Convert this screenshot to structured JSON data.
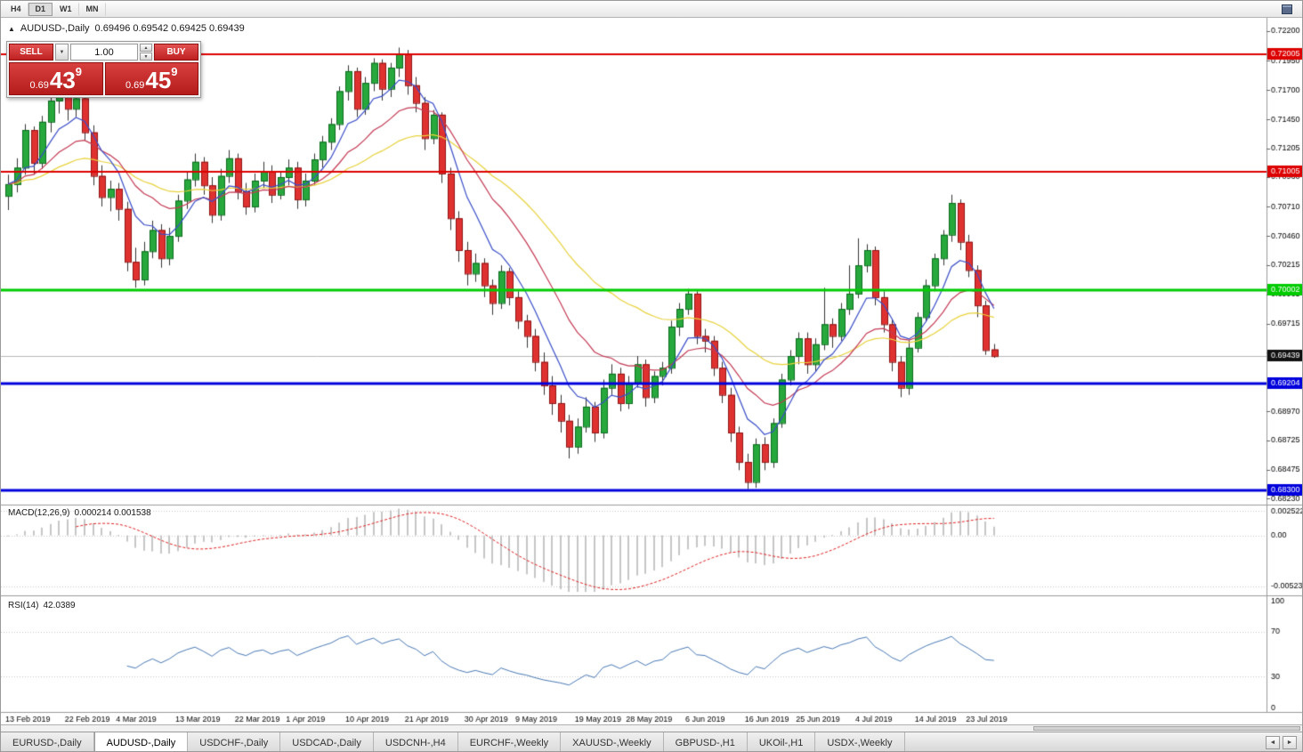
{
  "toolbar": {
    "timeframes": [
      "H4",
      "D1",
      "W1",
      "MN"
    ]
  },
  "icons": {
    "collapse": "▲",
    "dropdown": "▼",
    "spin_up": "▲",
    "spin_down": "▼",
    "tab_left": "◄",
    "tab_right": "►"
  },
  "chart_header": {
    "symbol": "AUDUSD-,Daily",
    "ohlc": "0.69496 0.69542 0.69425 0.69439"
  },
  "trade_panel": {
    "sell_label": "SELL",
    "buy_label": "BUY",
    "volume_value": "1.00",
    "bid": {
      "prefix": "0.69",
      "big": "43",
      "sup": "9"
    },
    "ask": {
      "prefix": "0.69",
      "big": "45",
      "sup": "9"
    }
  },
  "macd_panel": {
    "name": "MACD(12,26,9)",
    "values": "0.000214 0.001538"
  },
  "rsi_panel": {
    "name": "RSI(14)",
    "values": "42.0389"
  },
  "tabs": [
    {
      "label": "EURUSD-,Daily",
      "active": false
    },
    {
      "label": "AUDUSD-,Daily",
      "active": true
    },
    {
      "label": "USDCHF-,Daily",
      "active": false
    },
    {
      "label": "USDCAD-,Daily",
      "active": false
    },
    {
      "label": "USDCNH-,H4",
      "active": false
    },
    {
      "label": "EURCHF-,Weekly",
      "active": false
    },
    {
      "label": "XAUUSD-,Weekly",
      "active": false
    },
    {
      "label": "GBPUSD-,H1",
      "active": false
    },
    {
      "label": "UKOil-,H1",
      "active": false
    },
    {
      "label": "USDX-,Weekly",
      "active": false
    }
  ],
  "chart_data": {
    "type": "candlestick",
    "symbol": "AUDUSD",
    "timeframe": "Daily",
    "colors": {
      "up_fill": "#27a83c",
      "up_border": "#0c6b1e",
      "down_fill": "#e03131",
      "down_border": "#8f1414",
      "wick": "#333333",
      "bid_line": "#b8b8b8"
    },
    "y_ticks": [
      "0.72200",
      "0.71950",
      "0.71700",
      "0.71450",
      "0.71205",
      "0.70960",
      "0.70710",
      "0.70460",
      "0.70215",
      "0.69965",
      "0.69715",
      "0.69470",
      "0.68970",
      "0.68725",
      "0.68475",
      "0.68230"
    ],
    "levels": [
      {
        "label": "0.72005",
        "price": 0.72005,
        "color": "#dd0000",
        "width": 2
      },
      {
        "label": "0.71005",
        "price": 0.71005,
        "color": "#dd0000",
        "width": 2
      },
      {
        "label": "0.70002",
        "price": 0.70002,
        "color": "#00cc00",
        "width": 3
      },
      {
        "label": "0.69204",
        "price": 0.69204,
        "color": "#0000dd",
        "width": 3
      },
      {
        "label": "0.68300",
        "price": 0.683,
        "color": "#0000dd",
        "width": 3
      }
    ],
    "current_price": {
      "label": "0.69439",
      "price": 0.69439,
      "tag_color": "#111111"
    },
    "moving_averages": [
      {
        "type": "ema",
        "period": 34,
        "color": "#e8d23a"
      },
      {
        "type": "ema",
        "period": 16,
        "color": "#c43a54"
      },
      {
        "type": "ema",
        "period": 7,
        "color": "#3a4ec8"
      }
    ],
    "x_labels": [
      {
        "label": "13 Feb 2019",
        "bar": 0
      },
      {
        "label": "22 Feb 2019",
        "bar": 7
      },
      {
        "label": "4 Mar 2019",
        "bar": 13
      },
      {
        "label": "13 Mar 2019",
        "bar": 20
      },
      {
        "label": "22 Mar 2019",
        "bar": 27
      },
      {
        "label": "1 Apr 2019",
        "bar": 33
      },
      {
        "label": "10 Apr 2019",
        "bar": 40
      },
      {
        "label": "21 Apr 2019",
        "bar": 47
      },
      {
        "label": "30 Apr 2019",
        "bar": 54
      },
      {
        "label": "9 May 2019",
        "bar": 60
      },
      {
        "label": "19 May 2019",
        "bar": 67
      },
      {
        "label": "28 May 2019",
        "bar": 73
      },
      {
        "label": "6 Jun 2019",
        "bar": 80
      },
      {
        "label": "16 Jun 2019",
        "bar": 87
      },
      {
        "label": "25 Jun 2019",
        "bar": 93
      },
      {
        "label": "4 Jul 2019",
        "bar": 100
      },
      {
        "label": "14 Jul 2019",
        "bar": 107
      },
      {
        "label": "23 Jul 2019",
        "bar": 113
      }
    ],
    "macd": {
      "params": [
        12,
        26,
        9
      ],
      "axis": [
        {
          "label": "0.002522",
          "value": 0.002522
        },
        {
          "label": "0.00",
          "value": 0
        },
        {
          "label": "-0.005234",
          "value": -0.005234
        }
      ],
      "histogram_color": "#c6c6c6",
      "signal_color": "#e02020"
    },
    "rsi": {
      "period": 14,
      "last_value": 42.0389,
      "axis": [
        {
          "label": "100",
          "value": 100
        },
        {
          "label": "70",
          "value": 70
        },
        {
          "label": "30",
          "value": 30
        },
        {
          "label": "0",
          "value": 0
        }
      ],
      "line_color": "#4a7ab5",
      "level_lines": [
        70,
        30
      ]
    },
    "candles": [
      [
        0.708,
        0.7098,
        0.7068,
        0.709
      ],
      [
        0.709,
        0.7112,
        0.7083,
        0.7104
      ],
      [
        0.7104,
        0.7141,
        0.7098,
        0.7136
      ],
      [
        0.7136,
        0.7139,
        0.7098,
        0.7108
      ],
      [
        0.7108,
        0.7148,
        0.7103,
        0.7143
      ],
      [
        0.7143,
        0.7166,
        0.7134,
        0.7161
      ],
      [
        0.7161,
        0.7176,
        0.715,
        0.7169
      ],
      [
        0.7169,
        0.7173,
        0.7144,
        0.7154
      ],
      [
        0.7154,
        0.7171,
        0.7147,
        0.7163
      ],
      [
        0.7163,
        0.7166,
        0.7127,
        0.7134
      ],
      [
        0.7134,
        0.714,
        0.7089,
        0.7097
      ],
      [
        0.7097,
        0.7106,
        0.7071,
        0.7079
      ],
      [
        0.7079,
        0.7093,
        0.7067,
        0.7086
      ],
      [
        0.7086,
        0.7091,
        0.7059,
        0.7069
      ],
      [
        0.7069,
        0.7075,
        0.7016,
        0.7024
      ],
      [
        0.7024,
        0.7036,
        0.7002,
        0.7009
      ],
      [
        0.7009,
        0.7041,
        0.7004,
        0.7033
      ],
      [
        0.7033,
        0.7059,
        0.7027,
        0.7051
      ],
      [
        0.7051,
        0.7056,
        0.7019,
        0.7027
      ],
      [
        0.7027,
        0.7053,
        0.7021,
        0.7046
      ],
      [
        0.7046,
        0.7081,
        0.7041,
        0.7076
      ],
      [
        0.7076,
        0.7101,
        0.7069,
        0.7094
      ],
      [
        0.7094,
        0.7116,
        0.7088,
        0.7109
      ],
      [
        0.7109,
        0.7113,
        0.7081,
        0.7089
      ],
      [
        0.7089,
        0.7096,
        0.7057,
        0.7064
      ],
      [
        0.7064,
        0.7103,
        0.7059,
        0.7097
      ],
      [
        0.7097,
        0.7119,
        0.7091,
        0.7112
      ],
      [
        0.7112,
        0.7116,
        0.7077,
        0.7084
      ],
      [
        0.7084,
        0.7091,
        0.7064,
        0.7071
      ],
      [
        0.7071,
        0.7099,
        0.7066,
        0.7093
      ],
      [
        0.7093,
        0.7109,
        0.7087,
        0.7101
      ],
      [
        0.7101,
        0.7106,
        0.7074,
        0.7081
      ],
      [
        0.7081,
        0.7101,
        0.7077,
        0.7096
      ],
      [
        0.7096,
        0.7111,
        0.7089,
        0.7104
      ],
      [
        0.7104,
        0.7109,
        0.7069,
        0.7077
      ],
      [
        0.7077,
        0.7099,
        0.7071,
        0.7093
      ],
      [
        0.7093,
        0.7116,
        0.7089,
        0.7111
      ],
      [
        0.7111,
        0.7131,
        0.7104,
        0.7126
      ],
      [
        0.7126,
        0.7146,
        0.7119,
        0.7141
      ],
      [
        0.7141,
        0.7173,
        0.7136,
        0.7169
      ],
      [
        0.7169,
        0.7191,
        0.7161,
        0.7186
      ],
      [
        0.7186,
        0.7189,
        0.7147,
        0.7154
      ],
      [
        0.7154,
        0.7181,
        0.7149,
        0.7176
      ],
      [
        0.7176,
        0.7197,
        0.7169,
        0.7193
      ],
      [
        0.7193,
        0.7196,
        0.7161,
        0.7171
      ],
      [
        0.7171,
        0.7193,
        0.7164,
        0.7189
      ],
      [
        0.7189,
        0.7206,
        0.7181,
        0.7201
      ],
      [
        0.7201,
        0.7204,
        0.7166,
        0.7174
      ],
      [
        0.7174,
        0.7181,
        0.7151,
        0.7159
      ],
      [
        0.7159,
        0.7164,
        0.7119,
        0.7129
      ],
      [
        0.7129,
        0.7153,
        0.7124,
        0.7149
      ],
      [
        0.7149,
        0.7151,
        0.7091,
        0.7099
      ],
      [
        0.7099,
        0.7104,
        0.7051,
        0.7061
      ],
      [
        0.7061,
        0.7067,
        0.7024,
        0.7034
      ],
      [
        0.7034,
        0.7041,
        0.7004,
        0.7014
      ],
      [
        0.7014,
        0.7031,
        0.7007,
        0.7023
      ],
      [
        0.7023,
        0.7027,
        0.6994,
        0.7004
      ],
      [
        0.7004,
        0.7009,
        0.6979,
        0.6989
      ],
      [
        0.6989,
        0.7021,
        0.6984,
        0.7016
      ],
      [
        0.7016,
        0.7019,
        0.6987,
        0.6994
      ],
      [
        0.6994,
        0.6999,
        0.6967,
        0.6974
      ],
      [
        0.6974,
        0.6979,
        0.6951,
        0.6961
      ],
      [
        0.6961,
        0.6967,
        0.6931,
        0.6939
      ],
      [
        0.6939,
        0.6947,
        0.6911,
        0.6919
      ],
      [
        0.6919,
        0.6927,
        0.6894,
        0.6904
      ],
      [
        0.6904,
        0.6911,
        0.6879,
        0.6889
      ],
      [
        0.6889,
        0.6894,
        0.6857,
        0.6867
      ],
      [
        0.6867,
        0.6891,
        0.6861,
        0.6884
      ],
      [
        0.6884,
        0.6909,
        0.6879,
        0.6901
      ],
      [
        0.6901,
        0.6905,
        0.6871,
        0.6879
      ],
      [
        0.6879,
        0.6924,
        0.6874,
        0.6917
      ],
      [
        0.6917,
        0.6937,
        0.6911,
        0.6929
      ],
      [
        0.6929,
        0.6934,
        0.6897,
        0.6904
      ],
      [
        0.6904,
        0.6927,
        0.6899,
        0.6921
      ],
      [
        0.6921,
        0.6944,
        0.6917,
        0.6937
      ],
      [
        0.6937,
        0.6941,
        0.6901,
        0.6909
      ],
      [
        0.6909,
        0.6931,
        0.6904,
        0.6927
      ],
      [
        0.6927,
        0.6939,
        0.6919,
        0.6934
      ],
      [
        0.6934,
        0.6974,
        0.6929,
        0.6969
      ],
      [
        0.6969,
        0.6989,
        0.6961,
        0.6984
      ],
      [
        0.6984,
        0.7001,
        0.6979,
        0.6997
      ],
      [
        0.6997,
        0.6999,
        0.6954,
        0.6961
      ],
      [
        0.6961,
        0.6967,
        0.6947,
        0.6957
      ],
      [
        0.6957,
        0.6961,
        0.6927,
        0.6934
      ],
      [
        0.6934,
        0.6939,
        0.6904,
        0.6911
      ],
      [
        0.6911,
        0.6917,
        0.6871,
        0.6879
      ],
      [
        0.6879,
        0.6884,
        0.6847,
        0.6854
      ],
      [
        0.6854,
        0.6861,
        0.6831,
        0.6837
      ],
      [
        0.6837,
        0.6874,
        0.6832,
        0.6869
      ],
      [
        0.6869,
        0.6875,
        0.6847,
        0.6854
      ],
      [
        0.6854,
        0.6891,
        0.6849,
        0.6887
      ],
      [
        0.6887,
        0.6929,
        0.6883,
        0.6924
      ],
      [
        0.6924,
        0.6949,
        0.6919,
        0.6944
      ],
      [
        0.6944,
        0.6964,
        0.6937,
        0.6959
      ],
      [
        0.6959,
        0.6964,
        0.6929,
        0.6937
      ],
      [
        0.6937,
        0.6959,
        0.6931,
        0.6954
      ],
      [
        0.6954,
        0.7002,
        0.6949,
        0.6971
      ],
      [
        0.6971,
        0.6976,
        0.6951,
        0.6961
      ],
      [
        0.6961,
        0.6989,
        0.6957,
        0.6984
      ],
      [
        0.6984,
        0.7021,
        0.6979,
        0.6997
      ],
      [
        0.6997,
        0.7044,
        0.6993,
        0.7021
      ],
      [
        0.7021,
        0.7039,
        0.7015,
        0.7034
      ],
      [
        0.7034,
        0.7037,
        0.6987,
        0.6994
      ],
      [
        0.6994,
        0.6999,
        0.6964,
        0.6971
      ],
      [
        0.6971,
        0.6975,
        0.6931,
        0.6939
      ],
      [
        0.6939,
        0.6944,
        0.6909,
        0.6917
      ],
      [
        0.6917,
        0.6957,
        0.6911,
        0.6951
      ],
      [
        0.6951,
        0.6981,
        0.6947,
        0.6977
      ],
      [
        0.6977,
        0.7009,
        0.6973,
        0.7004
      ],
      [
        0.7004,
        0.7031,
        0.6999,
        0.7027
      ],
      [
        0.7027,
        0.7051,
        0.7021,
        0.7047
      ],
      [
        0.7047,
        0.7081,
        0.7041,
        0.7074
      ],
      [
        0.7074,
        0.7077,
        0.7034,
        0.7041
      ],
      [
        0.7041,
        0.7047,
        0.7011,
        0.7017
      ],
      [
        0.7017,
        0.7021,
        0.6977,
        0.6987
      ],
      [
        0.6987,
        0.6991,
        0.6945,
        0.6949
      ],
      [
        0.69496,
        0.69542,
        0.69425,
        0.69439
      ]
    ]
  }
}
